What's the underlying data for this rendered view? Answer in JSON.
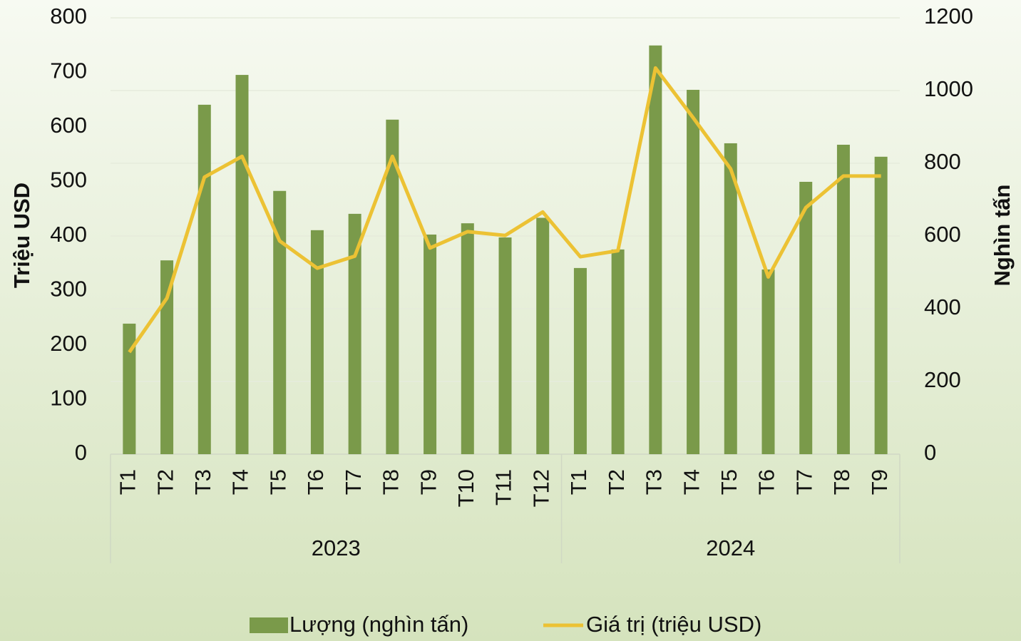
{
  "chart_data": {
    "type": "bar-line",
    "groups": [
      {
        "name": "2023",
        "categories": [
          "T1",
          "T2",
          "T3",
          "T4",
          "T5",
          "T6",
          "T7",
          "T8",
          "T9",
          "T10",
          "T11",
          "T12"
        ]
      },
      {
        "name": "2024",
        "categories": [
          "T1",
          "T2",
          "T3",
          "T4",
          "T5",
          "T6",
          "T7",
          "T8",
          "T9"
        ]
      }
    ],
    "series": [
      {
        "name": "Lượng (nghìn tấn)",
        "type": "bar",
        "axis": "y2",
        "color": "#7a9a4a",
        "values": [
          359,
          533,
          961,
          1043,
          724,
          616,
          661,
          920,
          604,
          635,
          596,
          650,
          512,
          563,
          1124,
          1002,
          855,
          508,
          749,
          851,
          818
        ]
      },
      {
        "name": "Giá trị (triệu USD)",
        "type": "line",
        "axis": "y",
        "color": "#ecc234",
        "values": [
          187,
          286,
          508,
          546,
          391,
          341,
          363,
          546,
          378,
          408,
          401,
          444,
          362,
          373,
          708,
          617,
          523,
          325,
          452,
          510,
          510
        ]
      }
    ],
    "ylabel": "Triệu USD",
    "y2label": "Nghìn tấn",
    "ylim": [
      0,
      800
    ],
    "yticks": [
      0,
      100,
      200,
      300,
      400,
      500,
      600,
      700,
      800
    ],
    "y2lim": [
      0,
      1200
    ],
    "y2ticks": [
      0,
      200,
      400,
      600,
      800,
      1000,
      1200
    ],
    "grid": true,
    "legend": "bottom"
  }
}
